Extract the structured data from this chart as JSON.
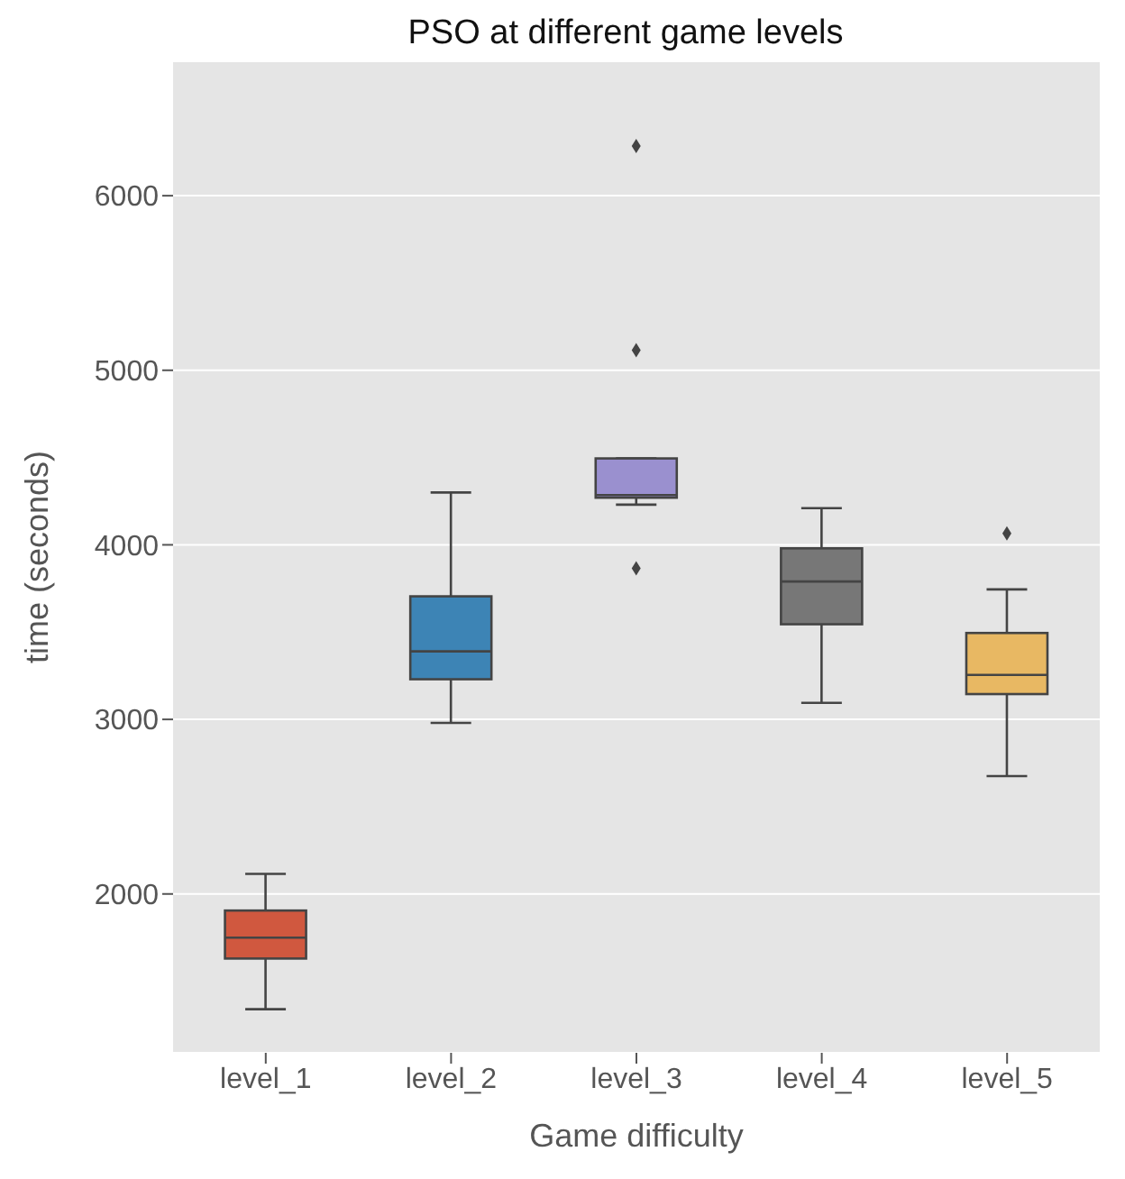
{
  "chart_data": {
    "type": "box",
    "title": "PSO at different game levels",
    "xlabel": "Game difficulty",
    "ylabel": "time (seconds)",
    "categories": [
      "level_1",
      "level_2",
      "level_3",
      "level_4",
      "level_5"
    ],
    "colors": [
      "#d0583f",
      "#3d84b5",
      "#9a90cf",
      "#777777",
      "#e8b863"
    ],
    "boxes": [
      {
        "low": 1340,
        "q1": 1630,
        "median": 1750,
        "q3": 1905,
        "high": 2115
      },
      {
        "low": 2980,
        "q1": 3230,
        "median": 3390,
        "q3": 3705,
        "high": 4300
      },
      {
        "low": 4230,
        "q1": 4270,
        "median": 4285,
        "q3": 4495,
        "high": 4495,
        "outliers": [
          6285,
          5115,
          3865
        ]
      },
      {
        "low": 3095,
        "q1": 3545,
        "median": 3790,
        "q3": 3980,
        "high": 4210
      },
      {
        "low": 2675,
        "q1": 3145,
        "median": 3255,
        "q3": 3495,
        "high": 3745,
        "outliers": [
          4065
        ]
      }
    ],
    "ylim": [
      1090,
      6770
    ],
    "yticks": [
      2000,
      3000,
      4000,
      5000,
      6000
    ],
    "grid": "y"
  }
}
